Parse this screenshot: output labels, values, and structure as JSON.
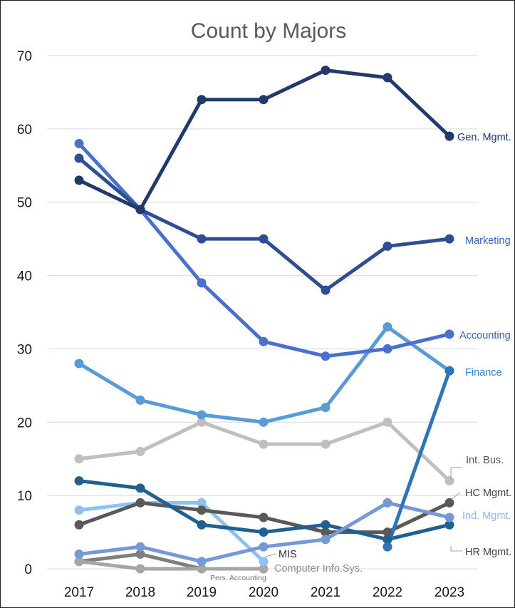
{
  "chart_data": {
    "type": "line",
    "title": "Count by Majors",
    "xlabel": "",
    "ylabel": "",
    "categories": [
      "2017",
      "2018",
      "2019",
      "2020",
      "2021",
      "2022",
      "2023"
    ],
    "ylim": [
      0,
      70
    ],
    "yticks": [
      0,
      10,
      20,
      30,
      40,
      50,
      60,
      70
    ],
    "grid": true,
    "series": [
      {
        "name": "Gen. Mgmt.",
        "color": "#22396b",
        "values": [
          53,
          49,
          64,
          64,
          68,
          67,
          59
        ]
      },
      {
        "name": "Marketing",
        "color": "#2f4d93",
        "values": [
          56,
          49,
          45,
          45,
          38,
          44,
          45
        ]
      },
      {
        "name": "Accounting",
        "color": "#4a6fcc",
        "values": [
          58,
          49,
          39,
          31,
          29,
          30,
          32
        ]
      },
      {
        "name": "Finance",
        "color": "#5b9bd5",
        "values": [
          28,
          23,
          21,
          20,
          22,
          33,
          27
        ]
      },
      {
        "name": "Int. Bus.",
        "color": "#bfbfbf",
        "values": [
          15,
          16,
          20,
          17,
          17,
          20,
          12
        ]
      },
      {
        "name": "HR Mgmt.",
        "color": "#215f8f",
        "values": [
          12,
          11,
          6,
          5,
          6,
          4,
          6
        ]
      },
      {
        "name": "HC Mgmt.",
        "color": "#595959",
        "values": [
          6,
          9,
          8,
          7,
          5,
          5,
          9
        ]
      },
      {
        "name": "Ind. Mgmt.",
        "color": "#7698d6",
        "values": [
          2,
          3,
          1,
          3,
          4,
          9,
          7
        ]
      },
      {
        "name": "Computer Info.Sys.",
        "color": "#8fc1ec",
        "values": [
          8,
          9,
          9,
          1,
          null,
          null,
          null
        ]
      },
      {
        "name": "Pers. Accounting",
        "color": "#a6a6a6",
        "values": [
          1,
          0,
          0,
          0,
          null,
          null,
          null
        ]
      },
      {
        "name": "MIS",
        "color": "#7f7f7f",
        "values": [
          1,
          2,
          0,
          null,
          null,
          null,
          null
        ]
      },
      {
        "name": "",
        "color": "#2e75b6",
        "values": [
          null,
          null,
          null,
          null,
          null,
          3,
          27
        ]
      }
    ]
  }
}
